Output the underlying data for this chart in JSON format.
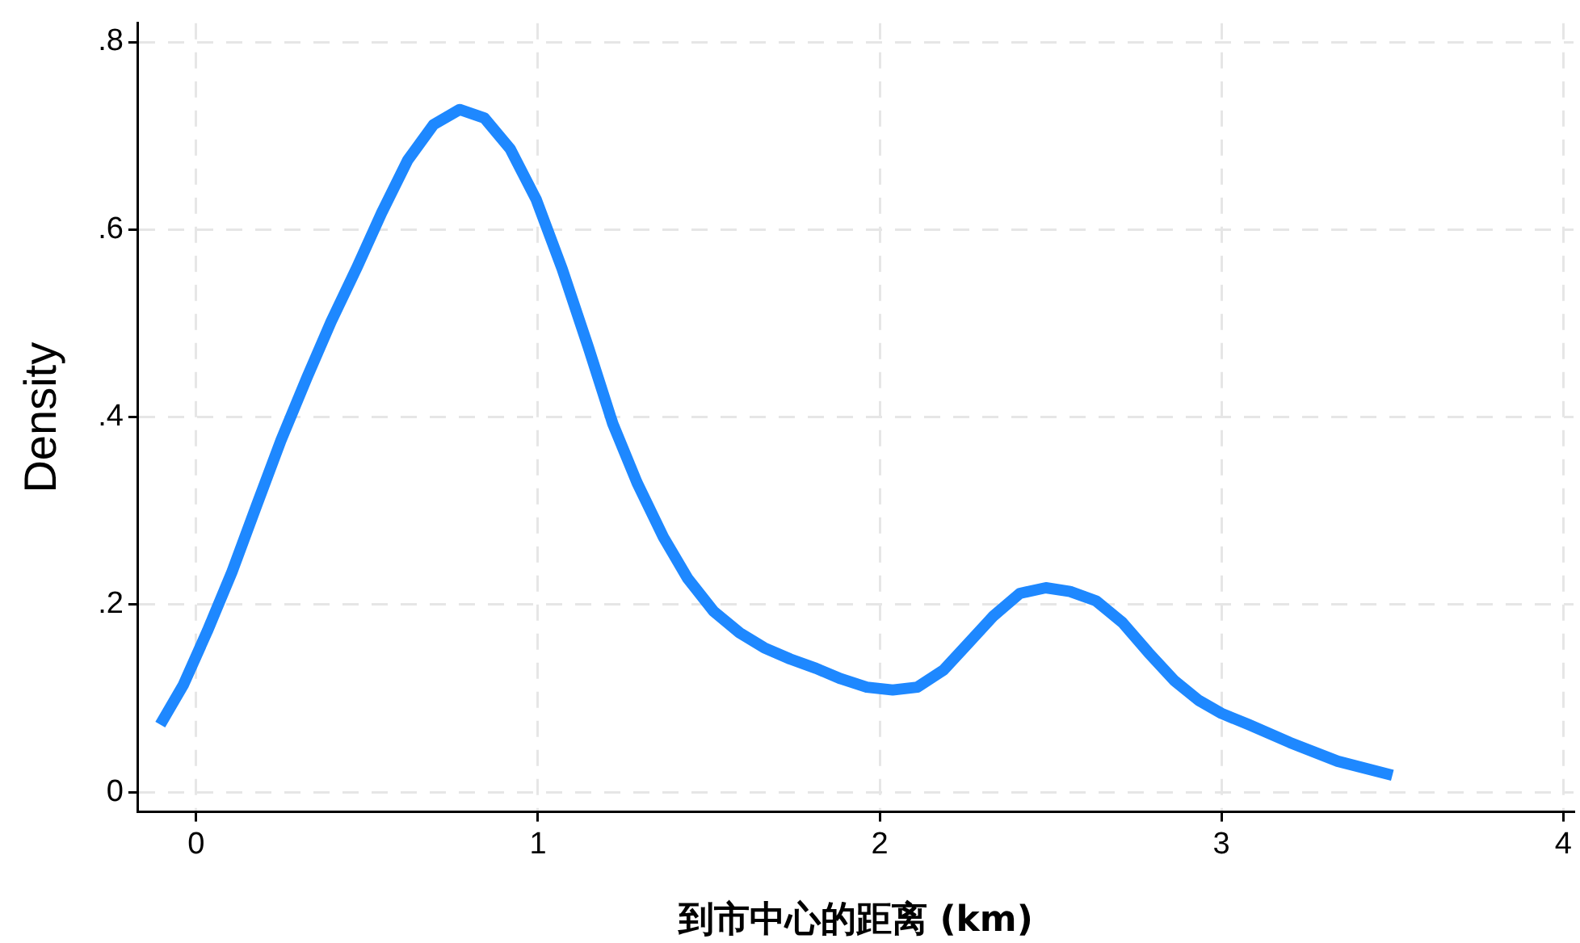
{
  "chart_data": {
    "type": "line",
    "xlabel": "到市中心的距离 (km)",
    "ylabel": "Density",
    "color": "#1e88ff",
    "x": [
      -0.105,
      -0.038,
      0.033,
      0.105,
      0.176,
      0.248,
      0.324,
      0.395,
      0.471,
      0.543,
      0.619,
      0.695,
      0.771,
      0.843,
      0.919,
      0.995,
      1.071,
      1.148,
      1.219,
      1.29,
      1.367,
      1.438,
      1.514,
      1.59,
      1.662,
      1.738,
      1.814,
      1.886,
      1.962,
      2.038,
      2.11,
      2.186,
      2.257,
      2.333,
      2.41,
      2.486,
      2.557,
      2.633,
      2.71,
      2.786,
      2.862,
      2.933,
      3.0,
      3.08,
      3.2,
      3.34,
      3.5
    ],
    "values": [
      0.072,
      0.114,
      0.172,
      0.235,
      0.305,
      0.375,
      0.442,
      0.502,
      0.56,
      0.618,
      0.674,
      0.712,
      0.728,
      0.719,
      0.686,
      0.632,
      0.558,
      0.474,
      0.393,
      0.33,
      0.272,
      0.228,
      0.193,
      0.17,
      0.154,
      0.142,
      0.132,
      0.121,
      0.112,
      0.109,
      0.112,
      0.13,
      0.158,
      0.188,
      0.212,
      0.218,
      0.214,
      0.204,
      0.181,
      0.149,
      0.119,
      0.098,
      0.084,
      0.072,
      0.053,
      0.033,
      0.018
    ],
    "xlim": [
      -0.17,
      4.03
    ],
    "ylim": [
      -0.021,
      0.82
    ],
    "xticks": [
      0,
      1,
      2,
      3,
      4
    ],
    "yticks": [
      0,
      {
        "value": 0.2,
        "label": ".2"
      },
      {
        "value": 0.4,
        "label": ".4"
      },
      {
        "value": 0.6,
        "label": ".6"
      },
      {
        "value": 0.8,
        "label": ".8"
      }
    ],
    "grid": true,
    "legend": false,
    "marker": "none",
    "line_style": "solid"
  }
}
